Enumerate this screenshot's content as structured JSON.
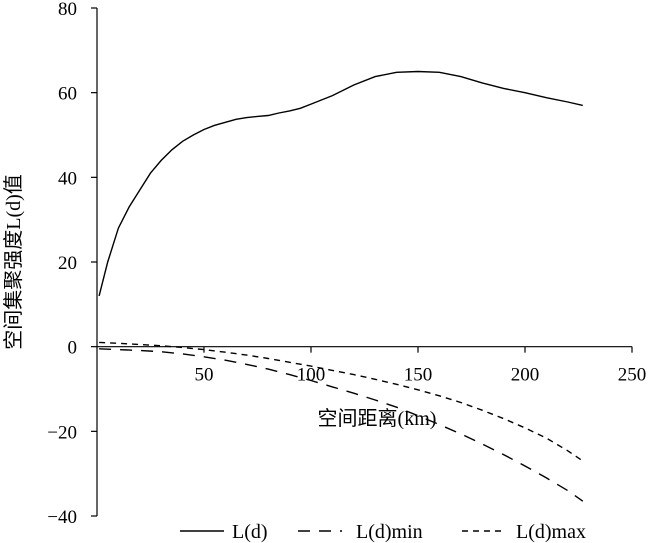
{
  "chart_data": {
    "type": "line",
    "title": "",
    "xlabel": "空间距离(km)",
    "ylabel": "空间集聚强度L(d)值",
    "xlim": [
      0,
      250
    ],
    "ylim": [
      -40,
      80
    ],
    "x_ticks": [
      50,
      100,
      150,
      200,
      250
    ],
    "y_ticks": [
      80,
      60,
      40,
      20,
      0,
      -20,
      -40
    ],
    "x_tick_labels": [
      "50",
      "100",
      "150",
      "200",
      "250"
    ],
    "y_tick_labels": [
      "80",
      "60",
      "40",
      "20",
      "0",
      "−20",
      "−40"
    ],
    "grid": false,
    "legend_position": "bottom",
    "series": [
      {
        "name": "L(d)",
        "style": "solid",
        "color": "#000000",
        "x": [
          1,
          5,
          10,
          15,
          20,
          25,
          30,
          35,
          40,
          45,
          50,
          55,
          60,
          65,
          70,
          75,
          80,
          85,
          90,
          95,
          100,
          110,
          120,
          130,
          140,
          150,
          160,
          170,
          180,
          190,
          200,
          210,
          220,
          227
        ],
        "y": [
          12,
          20,
          28,
          33,
          37,
          41,
          44,
          46.5,
          48.5,
          50,
          51.3,
          52.3,
          53,
          53.7,
          54.1,
          54.4,
          54.6,
          55.2,
          55.7,
          56.3,
          57.3,
          59.3,
          61.8,
          63.8,
          64.8,
          65,
          64.8,
          63.8,
          62.3,
          61,
          60,
          58.8,
          57.8,
          57
        ]
      },
      {
        "name": "L(d)min",
        "style": "long-dash",
        "color": "#000000",
        "x": [
          1,
          10,
          20,
          30,
          40,
          50,
          60,
          70,
          80,
          90,
          100,
          110,
          120,
          130,
          140,
          150,
          160,
          170,
          180,
          190,
          200,
          210,
          220,
          227
        ],
        "y": [
          -0.5,
          -0.7,
          -0.9,
          -1.2,
          -1.7,
          -2.4,
          -3.2,
          -4.2,
          -5.3,
          -6.6,
          -8,
          -9.5,
          -11,
          -12.6,
          -14.3,
          -16.3,
          -18.4,
          -20.6,
          -23,
          -25.5,
          -28.2,
          -31,
          -34,
          -36.5
        ]
      },
      {
        "name": "L(d)max",
        "style": "short-dash",
        "color": "#000000",
        "x": [
          1,
          10,
          20,
          30,
          40,
          50,
          60,
          70,
          80,
          90,
          100,
          110,
          120,
          130,
          140,
          150,
          160,
          170,
          180,
          190,
          200,
          210,
          220,
          227
        ],
        "y": [
          1,
          0.8,
          0.5,
          0.2,
          -0.2,
          -0.7,
          -1.3,
          -2,
          -2.8,
          -3.7,
          -4.6,
          -5.6,
          -6.6,
          -7.7,
          -8.9,
          -10.2,
          -11.6,
          -13.2,
          -15,
          -17,
          -19.2,
          -21.6,
          -24.6,
          -27
        ]
      }
    ]
  }
}
